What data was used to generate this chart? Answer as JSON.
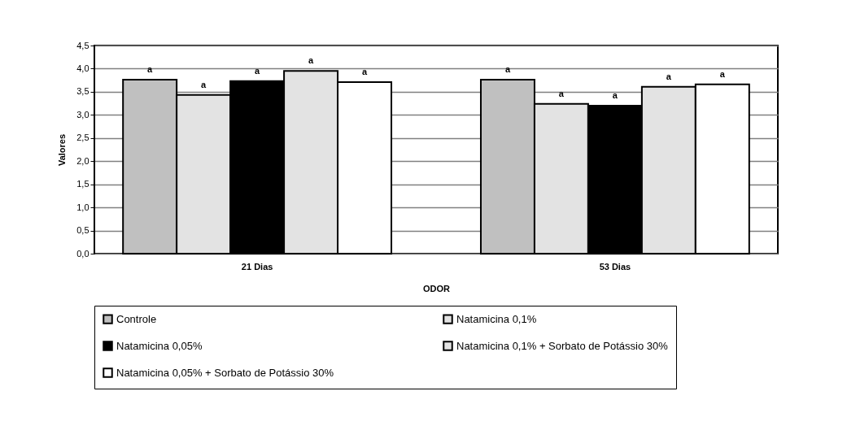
{
  "chart_data": {
    "type": "bar",
    "xlabel": "ODOR",
    "ylabel": "Valores",
    "categories": [
      "21 Dias",
      "53 Dias"
    ],
    "series": [
      {
        "name": "Controle",
        "color": "#c0c0c0",
        "values": [
          3.76,
          3.76
        ],
        "value_labels": [
          "a",
          "a"
        ]
      },
      {
        "name": "Natamicina 0,1%",
        "color": "#e3e3e3",
        "values": [
          3.43,
          3.24
        ],
        "value_labels": [
          "a",
          "a"
        ]
      },
      {
        "name": "Natamicina 0,05%",
        "color": "#000000",
        "values": [
          3.73,
          3.2
        ],
        "value_labels": [
          "a",
          "a"
        ]
      },
      {
        "name": "Natamicina 0,1% + Sorbato de Potássio 30%",
        "color": "#e3e3e3",
        "values": [
          3.95,
          3.61
        ],
        "value_labels": [
          "a",
          "a"
        ]
      },
      {
        "name": "Natamicina 0,05% + Sorbato de Potássio 30%",
        "color": "#ffffff",
        "values": [
          3.71,
          3.66
        ],
        "value_labels": [
          "a",
          "a"
        ]
      }
    ],
    "ylim": [
      0,
      4.5
    ],
    "yticks": [
      {
        "value": 0,
        "label": "0,0"
      },
      {
        "value": 0.5,
        "label": "0,5"
      },
      {
        "value": 1,
        "label": "1,0"
      },
      {
        "value": 1.5,
        "label": "1,5"
      },
      {
        "value": 2,
        "label": "2,0"
      },
      {
        "value": 2.5,
        "label": "2,5"
      },
      {
        "value": 3,
        "label": "3,0"
      },
      {
        "value": 3.5,
        "label": "3,5"
      },
      {
        "value": 4,
        "label": "4,0"
      },
      {
        "value": 4.5,
        "label": "4,5"
      }
    ],
    "grid": "y",
    "legend": "bottom"
  }
}
